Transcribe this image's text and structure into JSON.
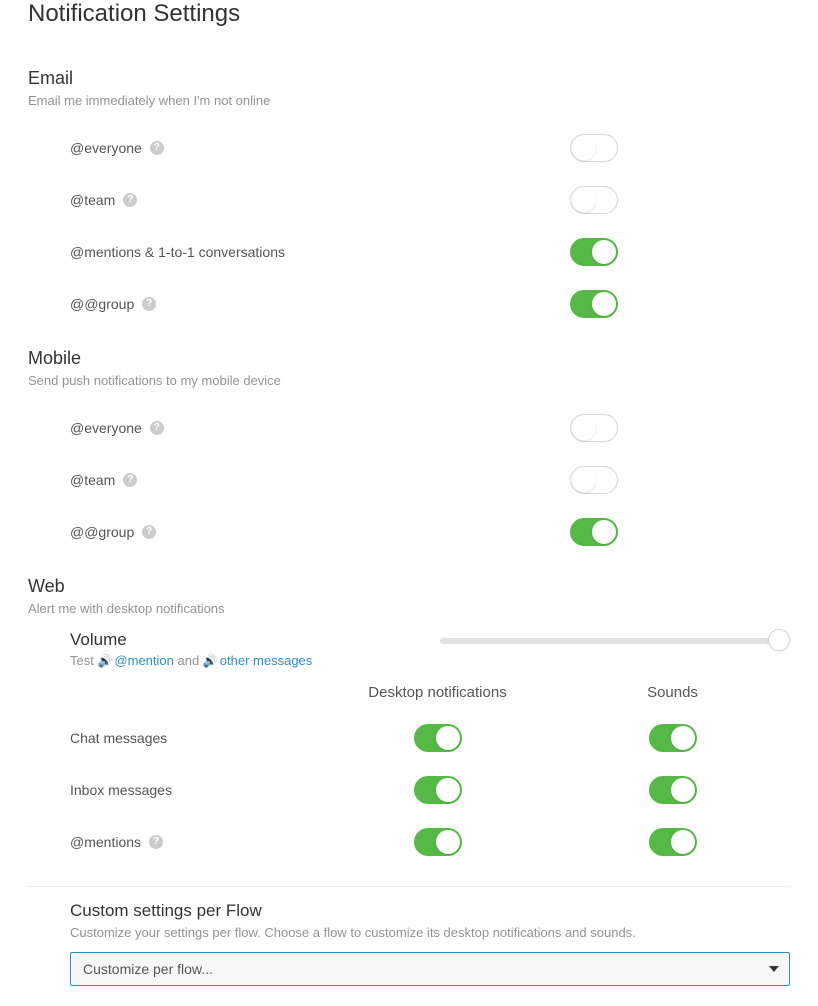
{
  "page": {
    "title": "Notification Settings"
  },
  "email": {
    "title": "Email",
    "subtitle": "Email me immediately when I'm not online",
    "items": [
      {
        "label": "@everyone",
        "help": true,
        "on": false
      },
      {
        "label": "@team",
        "help": true,
        "on": false
      },
      {
        "label": "@mentions & 1-to-1 conversations",
        "help": false,
        "on": true
      },
      {
        "label": "@@group",
        "help": true,
        "on": true
      }
    ]
  },
  "mobile": {
    "title": "Mobile",
    "subtitle": "Send push notifications to my mobile device",
    "items": [
      {
        "label": "@everyone",
        "help": true,
        "on": false
      },
      {
        "label": "@team",
        "help": true,
        "on": false
      },
      {
        "label": "@@group",
        "help": true,
        "on": true
      }
    ]
  },
  "web": {
    "title": "Web",
    "subtitle": "Alert me with desktop notifications",
    "volume": {
      "title": "Volume",
      "test_prefix": "Test",
      "mention_link": "@mention",
      "and_text": "and",
      "other_link": "other messages",
      "value": 100
    },
    "columns": [
      "Desktop notifications",
      "Sounds"
    ],
    "items": [
      {
        "label": "Chat messages",
        "help": false,
        "desktop": true,
        "sounds": true
      },
      {
        "label": "Inbox messages",
        "help": false,
        "desktop": true,
        "sounds": true
      },
      {
        "label": "@mentions",
        "help": true,
        "desktop": true,
        "sounds": true
      }
    ]
  },
  "custom": {
    "title": "Custom settings per Flow",
    "subtitle": "Customize your settings per flow. Choose a flow to customize its desktop notifications and sounds.",
    "placeholder": "Customize per flow..."
  },
  "colors": {
    "toggle_on": "#56b947",
    "link": "#2e8fc7"
  }
}
